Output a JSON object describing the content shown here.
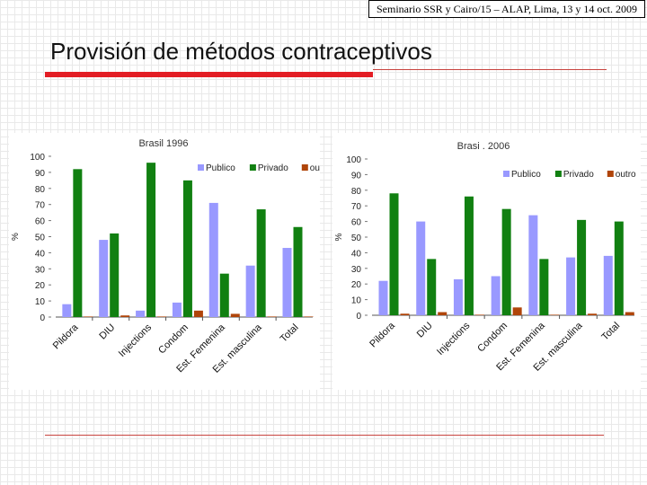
{
  "header": {
    "note": "Seminario SSR y Cairo/15 – ALAP, Lima, 13 y 14 oct. 2009"
  },
  "slide": {
    "title": "Provisión de métodos contraceptivos"
  },
  "colors": {
    "publico": "#9999ff",
    "privado": "#118011",
    "outro": "#b0450a",
    "accent_red": "#e31d24"
  },
  "chart_data": [
    {
      "type": "bar",
      "title": "Brasil 1996",
      "xlabel": "",
      "ylabel": "%",
      "ylim": [
        0,
        100
      ],
      "yticks": [
        "0",
        "10",
        "20",
        "30",
        "40",
        "50",
        "60",
        "70",
        "80",
        "90",
        "100"
      ],
      "categories": [
        "Pildora",
        "DIU",
        "Injections",
        "Condom",
        "Est. Femenina",
        "Est. masculina",
        "Total"
      ],
      "series": [
        {
          "name": "Publico",
          "values": [
            8,
            48,
            4,
            9,
            71,
            32,
            43
          ]
        },
        {
          "name": "Privado",
          "values": [
            92,
            52,
            96,
            85,
            27,
            67,
            56
          ]
        },
        {
          "name": "outro",
          "values": [
            0,
            1,
            0,
            4,
            2,
            0,
            0
          ]
        }
      ]
    },
    {
      "type": "bar",
      "title": "Brasi . 2006",
      "xlabel": "",
      "ylabel": "%",
      "ylim": [
        0,
        100
      ],
      "yticks": [
        "0",
        "10",
        "20",
        "30",
        "40",
        "50",
        "60",
        "70",
        "80",
        "90",
        "100"
      ],
      "categories": [
        "Pildora",
        "DIU",
        "Injections",
        "Condom",
        "Est. Femenina",
        "Est. masculina",
        "Total"
      ],
      "series": [
        {
          "name": "Publico",
          "values": [
            22,
            60,
            23,
            25,
            64,
            37,
            38
          ]
        },
        {
          "name": "Privado",
          "values": [
            78,
            36,
            76,
            68,
            36,
            61,
            60
          ]
        },
        {
          "name": "outro",
          "values": [
            1,
            2,
            0,
            5,
            0,
            1,
            2
          ]
        }
      ]
    }
  ]
}
